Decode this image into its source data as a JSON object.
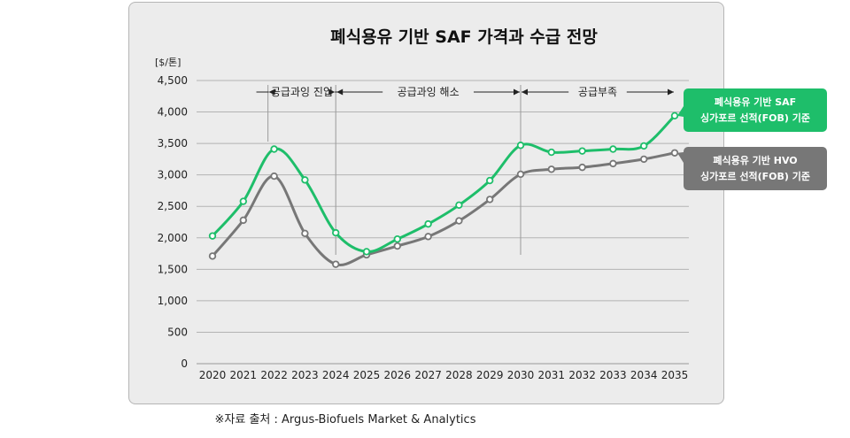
{
  "source": "※자료 출처 : Argus-Biofuels Market & Analytics",
  "colors": {
    "saf": "#1ebe6a",
    "hvo": "#777777",
    "panel": "#ececec"
  },
  "chart_data": {
    "type": "line",
    "title": "폐식용유 기반 SAF 가격과 수급 전망",
    "unit_label": "[$/톤]",
    "ylim": [
      0,
      4500
    ],
    "yticks": [
      "0",
      "500",
      "1,000",
      "1,500",
      "2,000",
      "2,500",
      "3,000",
      "3,500",
      "4,000",
      "4,500"
    ],
    "grid": true,
    "x": [
      "2020",
      "2021",
      "2022",
      "2023",
      "2024",
      "2025",
      "2026",
      "2027",
      "2028",
      "2029",
      "2030",
      "2031",
      "2032",
      "2033",
      "2034",
      "2035"
    ],
    "series": [
      {
        "name": "폐식용유 기반 SAF 싱가포르 선적(FOB) 기준",
        "label_lines": [
          "폐식용유 기반 SAF",
          "싱가포르 선적(FOB) 기준"
        ],
        "color": "#1ebe6a",
        "values": [
          2030,
          2580,
          3410,
          2920,
          2080,
          1780,
          1980,
          2220,
          2520,
          2910,
          3470,
          3360,
          3380,
          3410,
          3460,
          3940
        ]
      },
      {
        "name": "폐식용유 기반 HVO 싱가포르 선적(FOB) 기준",
        "label_lines": [
          "폐식용유 기반 HVO",
          "싱가포르 선적(FOB) 기준"
        ],
        "color": "#777777",
        "values": [
          1710,
          2280,
          2980,
          2070,
          1580,
          1730,
          1870,
          2020,
          2270,
          2610,
          3010,
          3090,
          3120,
          3180,
          3250,
          3350
        ]
      }
    ],
    "periods": [
      {
        "label": "공급과잉 진입",
        "from": "2021.8",
        "to": "2024"
      },
      {
        "label": "공급과잉 해소",
        "from": "2024",
        "to": "2030"
      },
      {
        "label": "공급부족",
        "from": "2030",
        "to": "2035"
      }
    ]
  }
}
